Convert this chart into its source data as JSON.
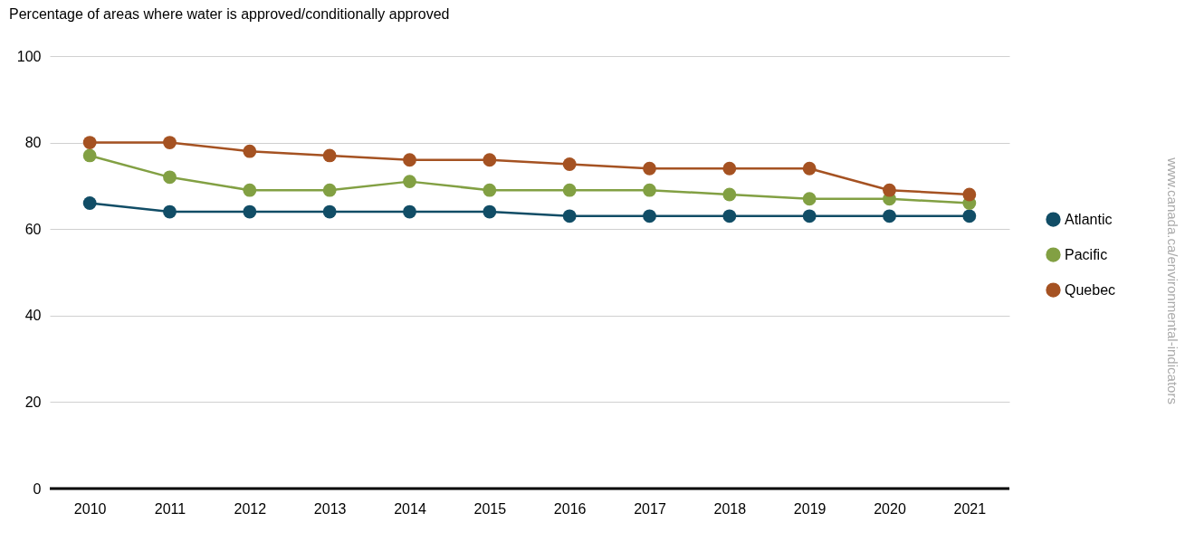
{
  "chart_data": {
    "type": "line",
    "title": "Percentage of areas where water is approved/conditionally approved",
    "categories": [
      "2010",
      "2011",
      "2012",
      "2013",
      "2014",
      "2015",
      "2016",
      "2017",
      "2018",
      "2019",
      "2020",
      "2021"
    ],
    "series": [
      {
        "name": "Atlantic",
        "color": "#114d66",
        "values": [
          66,
          64,
          64,
          64,
          64,
          64,
          63,
          63,
          63,
          63,
          63,
          63
        ]
      },
      {
        "name": "Pacific",
        "color": "#82a043",
        "values": [
          77,
          72,
          69,
          69,
          71,
          69,
          69,
          69,
          68,
          67,
          67,
          66
        ]
      },
      {
        "name": "Quebec",
        "color": "#a55222",
        "values": [
          80,
          80,
          78,
          77,
          76,
          76,
          75,
          74,
          74,
          74,
          69,
          68
        ]
      }
    ],
    "ylim": [
      0,
      100
    ],
    "yticks": [
      0,
      20,
      40,
      60,
      80,
      100
    ],
    "grid": "y",
    "legend": "right",
    "marker": "circle",
    "line_style": "solid",
    "annotations": [
      "www.canada.ca/environmental-indicators"
    ]
  }
}
